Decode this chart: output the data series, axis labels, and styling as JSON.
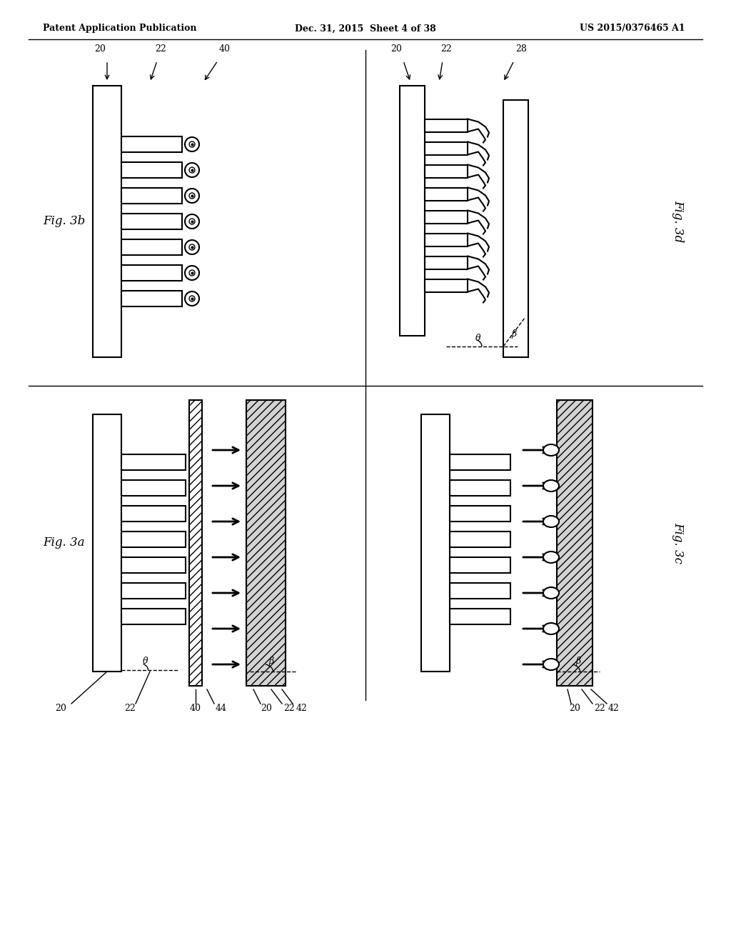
{
  "header_left": "Patent Application Publication",
  "header_center": "Dec. 31, 2015  Sheet 4 of 38",
  "header_right": "US 2015/0376465 A1",
  "fig_labels": [
    "Fig. 3a",
    "Fig. 3b",
    "Fig. 3c",
    "Fig. 3d"
  ],
  "ref_numbers": {
    "20": "20",
    "22": "22",
    "40": "40",
    "44": "44",
    "42": "42",
    "28": "28"
  },
  "background": "#ffffff",
  "line_color": "#000000"
}
